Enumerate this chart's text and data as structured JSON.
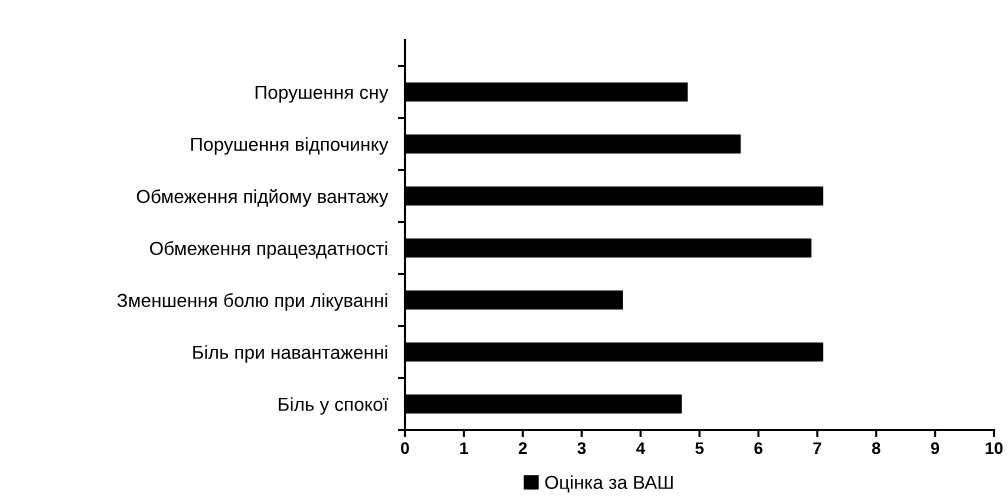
{
  "chart_data": {
    "type": "bar",
    "orientation": "horizontal",
    "categories": [
      "Порушення сну",
      "Порушення відпочинку",
      "Обмеження підйому вантажу",
      "Обмеження працездатності",
      "Зменшення болю при лікуванні",
      "Біль при навантаженні",
      "Біль у спокої"
    ],
    "series": [
      {
        "name": "Оцінка за ВАШ",
        "color": "#000000",
        "values": [
          4.8,
          5.7,
          7.1,
          6.9,
          3.7,
          7.1,
          4.7
        ]
      }
    ],
    "xlim": [
      0,
      10
    ],
    "xticks": [
      0,
      1,
      2,
      3,
      4,
      5,
      6,
      7,
      8,
      9,
      10
    ],
    "grid": false,
    "legend": "bottom"
  }
}
